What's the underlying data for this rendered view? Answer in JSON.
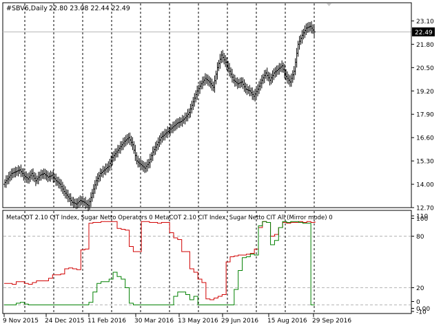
{
  "header": {
    "symbol": "#SBV6,Daily",
    "ohlc": "22.80 23.08 22.44 22.49"
  },
  "indicator": {
    "title": "MetaCOT 2.10 CIT Index, Sugar Netto Operators 0  MetaCOT 2.10 CIT Index, Sugar Netto CIT All (Mirror mode) 0"
  },
  "price_axis": {
    "ticks": [
      "23.10",
      "21.80",
      "20.50",
      "19.20",
      "17.90",
      "16.60",
      "15.30",
      "14.00",
      "12.70"
    ],
    "current_price": "22.49"
  },
  "indicator_axis": {
    "ticks": [
      "110",
      "100",
      "80",
      "20",
      "0",
      "0.00",
      "-10"
    ]
  },
  "time_axis": {
    "labels": [
      "9 Nov 2015",
      "24 Dec 2015",
      "11 Feb 2016",
      "30 Mar 2016",
      "13 May 2016",
      "29 Jun 2016",
      "15 Aug 2016",
      "29 Sep 2016"
    ]
  },
  "colors": {
    "price_bars": "#000000",
    "netto_operators": "#d10000",
    "netto_cit_all": "#008000",
    "levels": "#b4b4b4",
    "period_separators": "#000000"
  },
  "chart_data": [
    {
      "type": "line",
      "series": [
        {
          "values": [
            14.0,
            14.3,
            14.6,
            14.7,
            14.8,
            14.5,
            14.3,
            14.6,
            14.2,
            14.5,
            14.6,
            14.4,
            14.5,
            14.2,
            14.0,
            13.6,
            13.3,
            13.0,
            12.9,
            13.1,
            13.0,
            12.8,
            13.5,
            14.2,
            14.6,
            14.8,
            15.0,
            15.5,
            15.8,
            16.1,
            16.4,
            16.6,
            16.2,
            15.3,
            15.1,
            14.9,
            15.2,
            15.8,
            16.2,
            16.6,
            16.8,
            17.0,
            17.2,
            17.4,
            17.5,
            17.7,
            18.0,
            18.6,
            19.2,
            19.6,
            19.9,
            19.7,
            19.4,
            20.5,
            21.2,
            20.8,
            20.3,
            19.8,
            19.6,
            19.7,
            19.3,
            19.2,
            18.9,
            19.3,
            19.8,
            20.2,
            19.8,
            20.2,
            20.4,
            20.6,
            20.0,
            19.7,
            20.3,
            21.8,
            22.3,
            22.7,
            22.8,
            22.49
          ],
          "ylim": [
            12.7,
            23.5
          ]
        }
      ]
    },
    {
      "type": "line",
      "series": [
        {
          "values": [
            25,
            25,
            24,
            27,
            27,
            25,
            24,
            26,
            28,
            28,
            28,
            31,
            35,
            35,
            36,
            42,
            43,
            42,
            41,
            64,
            65,
            95,
            96,
            96,
            97,
            97,
            97,
            97,
            89,
            88,
            87,
            68,
            62,
            62,
            97,
            97,
            96,
            96,
            95,
            96,
            96,
            84,
            78,
            76,
            62,
            62,
            42,
            38,
            30,
            26,
            7,
            6,
            8,
            10,
            12,
            50,
            56,
            57,
            58,
            58,
            59,
            60,
            65,
            90,
            97,
            96,
            80,
            82,
            90,
            96,
            95,
            96,
            96,
            97,
            96,
            97,
            96,
            97
          ],
          "ylim": [
            -10,
            110
          ]
        },
        {
          "values": [
            0,
            0,
            0,
            2,
            3,
            1,
            0,
            0,
            0,
            0,
            0,
            0,
            0,
            0,
            0,
            0,
            0,
            0,
            0,
            0,
            0,
            3,
            15,
            25,
            27,
            27,
            30,
            38,
            33,
            30,
            20,
            2,
            0,
            0,
            0,
            0,
            0,
            0,
            0,
            0,
            0,
            0,
            10,
            15,
            15,
            12,
            6,
            10,
            0,
            0,
            0,
            0,
            0,
            0,
            0,
            0,
            0,
            18,
            40,
            55,
            56,
            59,
            58,
            92,
            97,
            96,
            70,
            75,
            90,
            97,
            96,
            97,
            97,
            96,
            95,
            95,
            0,
            0
          ],
          "ylim": [
            -10,
            110
          ]
        }
      ]
    }
  ]
}
